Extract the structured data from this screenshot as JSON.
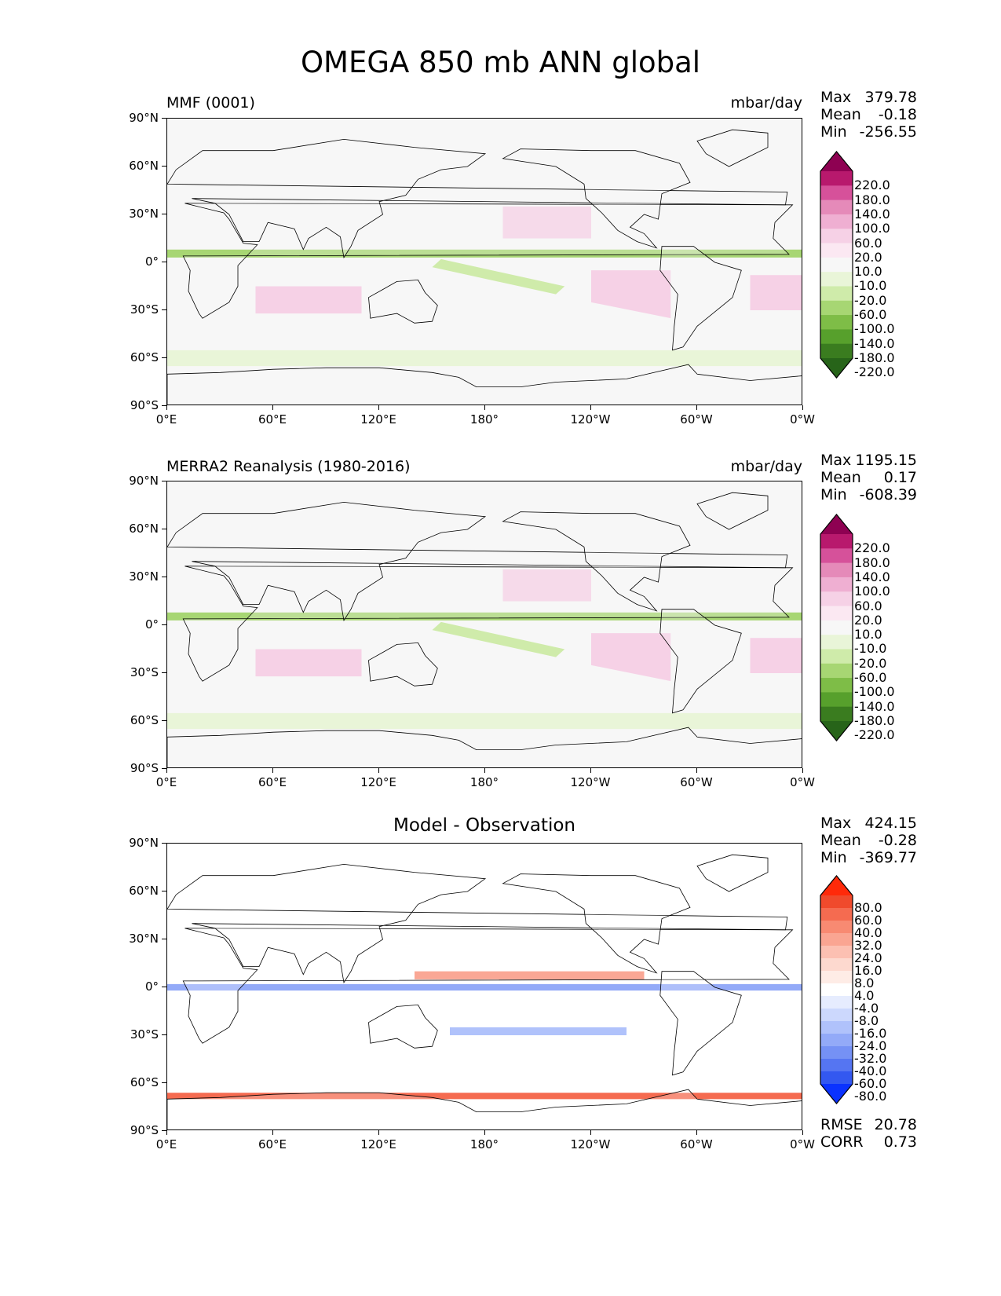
{
  "figure_title": "OMEGA 850 mb ANN global",
  "axes": {
    "lat_ticks": [
      "90°N",
      "60°N",
      "30°N",
      "0°",
      "30°S",
      "60°S",
      "90°S"
    ],
    "lon_ticks": [
      "0°E",
      "60°E",
      "120°E",
      "180°",
      "120°W",
      "60°W",
      "0°W"
    ]
  },
  "panels": [
    {
      "id": "model",
      "title": "MMF (0001)",
      "units": "mbar/day",
      "stats": [
        {
          "label": "Max",
          "value": "379.78"
        },
        {
          "label": "Mean",
          "value": "-0.18"
        },
        {
          "label": "Min",
          "value": "-256.55"
        }
      ],
      "colorbar": {
        "labels": [
          "220.0",
          "180.0",
          "140.0",
          "100.0",
          "60.0",
          "20.0",
          "10.0",
          "-10.0",
          "-20.0",
          "-60.0",
          "-100.0",
          "-140.0",
          "-180.0",
          "-220.0"
        ],
        "colors": [
          "#8e0152",
          "#b8196d",
          "#d6519a",
          "#e58ab9",
          "#efafd2",
          "#f6d1e6",
          "#fbe8f2",
          "#f7f7f7",
          "#e9f5d8",
          "#cfebaa",
          "#a7d673",
          "#7ebd47",
          "#57a02c",
          "#3a7c1f",
          "#276419"
        ]
      }
    },
    {
      "id": "obs",
      "title": "MERRA2 Reanalysis (1980-2016)",
      "units": "mbar/day",
      "stats": [
        {
          "label": "Max",
          "value": "1195.15"
        },
        {
          "label": "Mean",
          "value": "0.17"
        },
        {
          "label": "Min",
          "value": "-608.39"
        }
      ],
      "colorbar": {
        "labels": [
          "220.0",
          "180.0",
          "140.0",
          "100.0",
          "60.0",
          "20.0",
          "10.0",
          "-10.0",
          "-20.0",
          "-60.0",
          "-100.0",
          "-140.0",
          "-180.0",
          "-220.0"
        ],
        "colors": [
          "#8e0152",
          "#b8196d",
          "#d6519a",
          "#e58ab9",
          "#efafd2",
          "#f6d1e6",
          "#fbe8f2",
          "#f7f7f7",
          "#e9f5d8",
          "#cfebaa",
          "#a7d673",
          "#7ebd47",
          "#57a02c",
          "#3a7c1f",
          "#276419"
        ]
      }
    },
    {
      "id": "diff",
      "title": "Model - Observation",
      "units": "",
      "stats": [
        {
          "label": "Max",
          "value": "424.15"
        },
        {
          "label": "Mean",
          "value": "-0.28"
        },
        {
          "label": "Min",
          "value": "-369.77"
        }
      ],
      "extra_stats": [
        {
          "label": "RMSE",
          "value": "20.78"
        },
        {
          "label": "CORR",
          "value": "0.73"
        }
      ],
      "colorbar": {
        "labels": [
          "80.0",
          "60.0",
          "40.0",
          "32.0",
          "24.0",
          "16.0",
          "8.0",
          "4.0",
          "-4.0",
          "-8.0",
          "-16.0",
          "-24.0",
          "-32.0",
          "-40.0",
          "-60.0",
          "-80.0"
        ],
        "colors": [
          "#ff2a0a",
          "#f04a2c",
          "#f56b50",
          "#f88a72",
          "#faa592",
          "#fcc0b2",
          "#fdd9cf",
          "#feece6",
          "#ffffff",
          "#e6ecfe",
          "#ccd8fd",
          "#b0c2fb",
          "#93aaf8",
          "#7591f5",
          "#5575f2",
          "#3358f0",
          "#0a32ff"
        ]
      }
    }
  ]
}
